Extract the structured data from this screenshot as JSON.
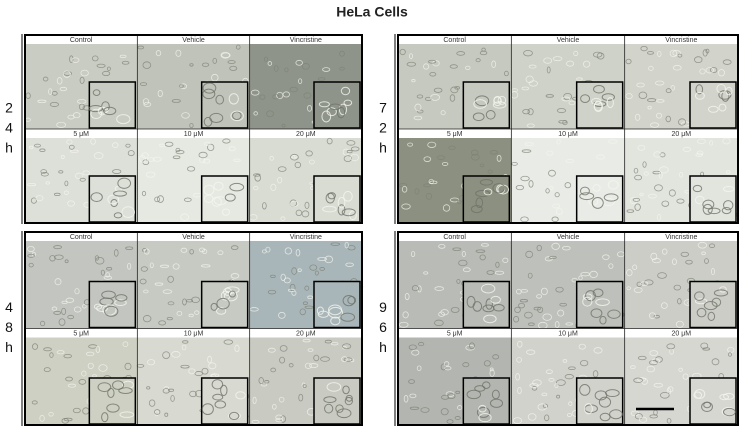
{
  "title": "HeLa Cells",
  "panels": [
    {
      "time_label": [
        "2",
        "4",
        "h"
      ],
      "image_labels": [
        "Control",
        "Vehicle",
        "Vincristine",
        "5 μM",
        "10 μM",
        "20 μM"
      ]
    },
    {
      "time_label": [
        "7",
        "2",
        "h"
      ],
      "image_labels": [
        "Control",
        "Vehicle",
        "Vincristine",
        "5 μM",
        "10 μM",
        "20 μM"
      ]
    },
    {
      "time_label": [
        "4",
        "8",
        "h"
      ],
      "image_labels": [
        "Control",
        "Vehicle",
        "Vincristine",
        "5 μM",
        "10 μM",
        "20 μM"
      ]
    },
    {
      "time_label": [
        "9",
        "6",
        "h"
      ],
      "image_labels": [
        "Control",
        "Vehicle",
        "Vincristine",
        "5 μM",
        "10 μM",
        "20 μM"
      ]
    }
  ]
}
